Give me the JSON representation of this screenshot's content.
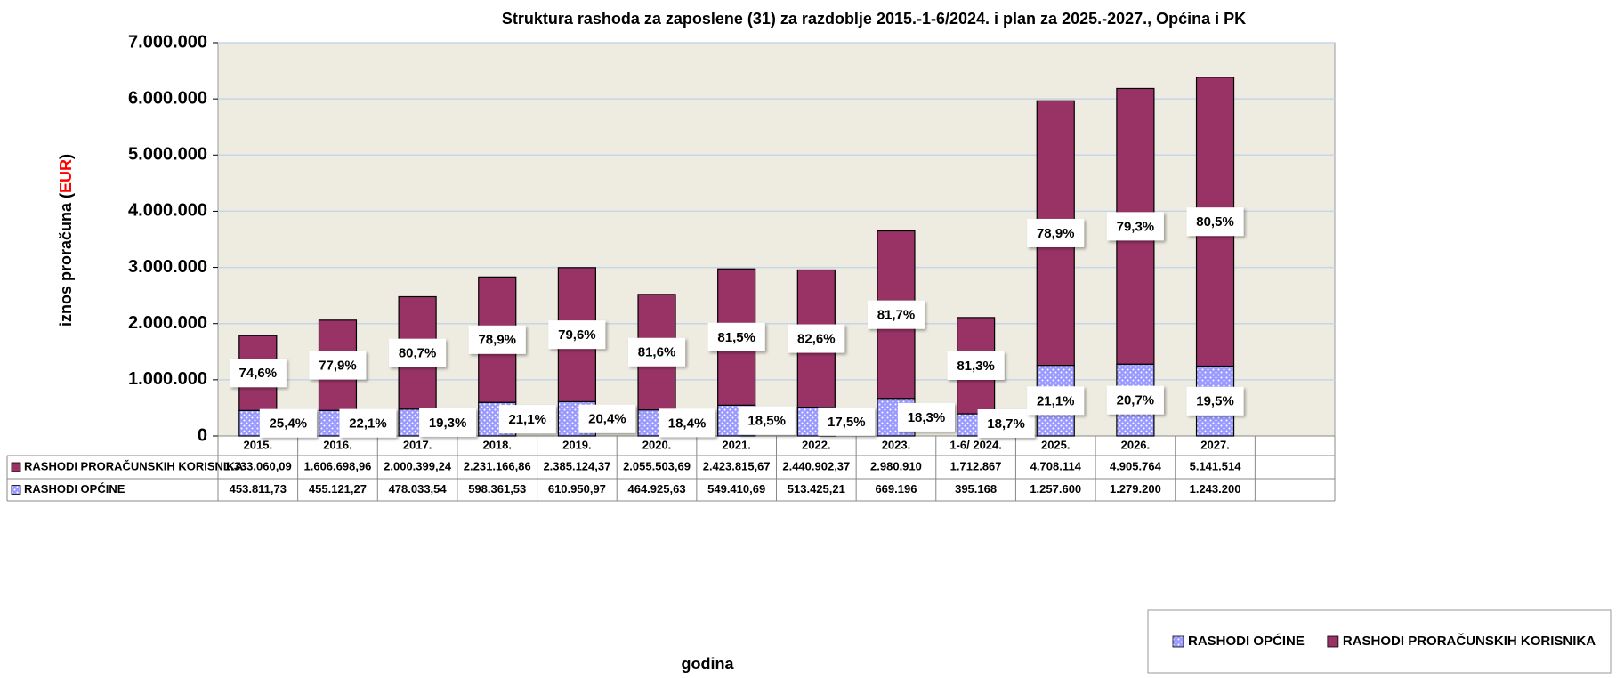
{
  "chart_data": {
    "type": "stacked_bar",
    "title": "Struktura rashoda za zaposlene (31) za razdoblje 2015.-1-6/2024. i plan za 2025.-2027., Općina i PK",
    "ylabel_parts": [
      "iznos proračuna (",
      "EUR",
      ")"
    ],
    "xlabel": "godina",
    "categories": [
      "2015.",
      "2016.",
      "2017.",
      "2018.",
      "2019.",
      "2020.",
      "2021.",
      "2022.",
      "2023.",
      "1-6/ 2024.",
      "2025.",
      "2026.",
      "2027."
    ],
    "ylim": [
      0,
      7000000
    ],
    "yticks": [
      0,
      {
        "value": 1000000,
        "label": "1.000.000"
      },
      {
        "value": 2000000,
        "label": "2.000.000"
      },
      {
        "value": 3000000,
        "label": "3.000.000"
      },
      {
        "value": 4000000,
        "label": "4.000.000"
      },
      {
        "value": 5000000,
        "label": "5.000.000"
      },
      {
        "value": 6000000,
        "label": "6.000.000"
      },
      {
        "value": 7000000,
        "label": "7.000.000"
      }
    ],
    "grid": true,
    "legend": "bottom-right",
    "series": [
      {
        "name": "RASHODI OPĆINE",
        "color": "#9999ff",
        "values": [
          453811.73,
          455121.27,
          478033.54,
          598361.53,
          610950.97,
          464925.63,
          549410.69,
          513425.21,
          669196,
          395168,
          1257600,
          1279200,
          1243200
        ],
        "value_labels": [
          "453.811,73",
          "455.121,27",
          "478.033,54",
          "598.361,53",
          "610.950,97",
          "464.925,63",
          "549.410,69",
          "513.425,21",
          "669.196",
          "395.168",
          "1.257.600",
          "1.279.200",
          "1.243.200"
        ],
        "share_labels": [
          "25,4%",
          "22,1%",
          "19,3%",
          "21,1%",
          "20,4%",
          "18,4%",
          "18,5%",
          "17,5%",
          "18,3%",
          "18,7%",
          "21,1%",
          "20,7%",
          "19,5%"
        ]
      },
      {
        "name": "RASHODI PRORAČUNSKIH KORISNIKA",
        "color": "#993366",
        "values": [
          1333060.09,
          1606698.96,
          2000399.24,
          2231166.86,
          2385124.37,
          2055503.69,
          2423815.67,
          2440902.37,
          2980910,
          1712867,
          4708114,
          4905764,
          5141514
        ],
        "value_labels": [
          "1.333.060,09",
          "1.606.698,96",
          "2.000.399,24",
          "2.231.166,86",
          "2.385.124,37",
          "2.055.503,69",
          "2.423.815,67",
          "2.440.902,37",
          "2.980.910",
          "1.712.867",
          "4.708.114",
          "4.905.764",
          "5.141.514"
        ],
        "share_labels": [
          "74,6%",
          "77,9%",
          "80,7%",
          "78,9%",
          "79,6%",
          "81,6%",
          "81,5%",
          "82,6%",
          "81,7%",
          "81,3%",
          "78,9%",
          "79,3%",
          "80,5%"
        ]
      }
    ]
  }
}
